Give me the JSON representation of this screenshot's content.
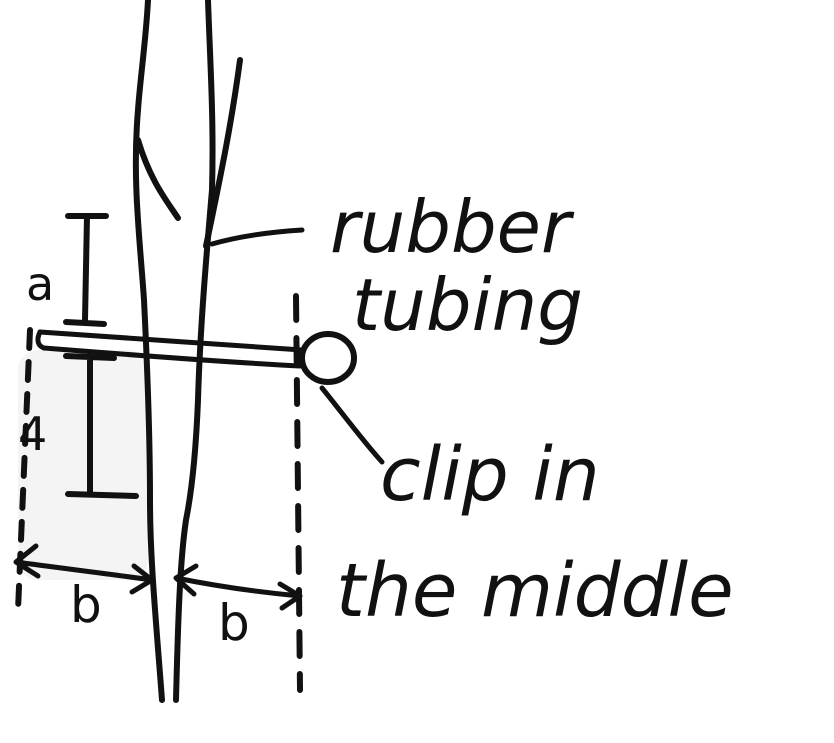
{
  "labels": {
    "rubber": "rubber",
    "tubing": "tubing",
    "clip_line1": "clip in",
    "clip_line2": "the middle",
    "dim_a": "a",
    "dim_4": "4",
    "dim_b_left": "b",
    "dim_b_right": "b"
  },
  "colors": {
    "ink": "#111111",
    "smudge": "#e6e6e6",
    "background": "#ffffff"
  }
}
